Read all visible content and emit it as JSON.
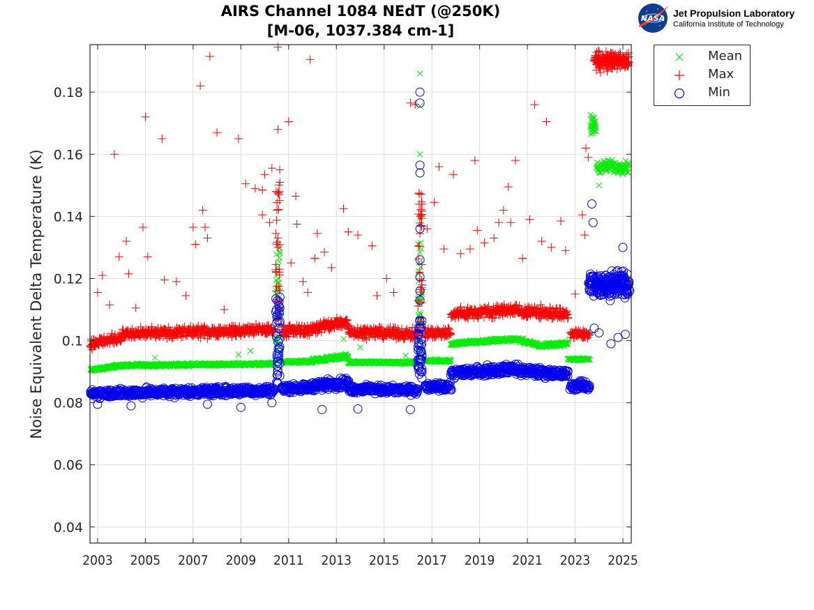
{
  "header": {
    "title_line1": "AIRS Channel 1084 NEdT (@250K)",
    "title_line2": "[M-06, 1037.384 cm-1]"
  },
  "logo": {
    "emblem": "NASA",
    "name": "Jet Propulsion Laboratory",
    "subtitle": "California Institute of Technology"
  },
  "chart_data": {
    "type": "scatter",
    "title": "AIRS Channel 1084 NEdT (@250K) [M-06, 1037.384 cm-1]",
    "xlabel": "",
    "ylabel": "Noise Equivalent Delta Temperature (K)",
    "xlim": [
      2002.68,
      2025.35
    ],
    "ylim": [
      0.0348,
      0.1953
    ],
    "xticks": [
      2003,
      2005,
      2007,
      2009,
      2011,
      2013,
      2015,
      2017,
      2019,
      2021,
      2023,
      2025
    ],
    "xtick_labels": [
      "2003",
      "2005",
      "2007",
      "2009",
      "2011",
      "2013",
      "2015",
      "2017",
      "2019",
      "2021",
      "2023",
      "2025"
    ],
    "yticks": [
      0.04,
      0.06,
      0.08,
      0.1,
      0.12,
      0.14,
      0.16,
      0.18
    ],
    "ytick_labels": [
      "0.04",
      "0.06",
      "0.08",
      "0.1",
      "0.12",
      "0.14",
      "0.16",
      "0.18"
    ],
    "grid": true,
    "legend_position": "outside-top-right",
    "colors": {
      "Mean": "#00ee00",
      "Max": "#ff0000",
      "Min": "#0000ee"
    },
    "series": [
      {
        "name": "Mean",
        "marker": "x",
        "segments": [
          {
            "x": [
              2002.7,
              2004.0
            ],
            "y": [
              0.0905,
              0.092
            ],
            "spread": 0.0008
          },
          {
            "x": [
              2004.0,
              2010.4
            ],
            "y": [
              0.092,
              0.0925
            ],
            "spread": 0.0007
          },
          {
            "x": [
              2010.7,
              2012.0
            ],
            "y": [
              0.093,
              0.0932
            ],
            "spread": 0.0007
          },
          {
            "x": [
              2012.0,
              2013.5
            ],
            "y": [
              0.0935,
              0.095
            ],
            "spread": 0.0012
          },
          {
            "x": [
              2013.5,
              2016.4
            ],
            "y": [
              0.093,
              0.093
            ],
            "spread": 0.0006
          },
          {
            "x": [
              2016.7,
              2017.8
            ],
            "y": [
              0.0935,
              0.0935
            ],
            "spread": 0.0006
          },
          {
            "x": [
              2017.8,
              2020.5
            ],
            "y": [
              0.099,
              0.1005
            ],
            "spread": 0.001
          },
          {
            "x": [
              2020.5,
              2021.5
            ],
            "y": [
              0.1005,
              0.0985
            ],
            "spread": 0.001
          },
          {
            "x": [
              2021.5,
              2022.7
            ],
            "y": [
              0.0985,
              0.099
            ],
            "spread": 0.001
          },
          {
            "x": [
              2022.7,
              2023.6
            ],
            "y": [
              0.094,
              0.094
            ],
            "spread": 0.0005
          },
          {
            "x": [
              2023.65,
              2023.85
            ],
            "y": [
              0.169,
              0.169
            ],
            "spread": 0.0045
          },
          {
            "x": [
              2023.9,
              2025.25
            ],
            "y": [
              0.156,
              0.156
            ],
            "spread": 0.003
          }
        ],
        "spikes": [
          {
            "x": 2010.55,
            "y": [
              0.093,
              0.131
            ]
          },
          {
            "x": 2016.5,
            "y": [
              0.094,
              0.132
            ]
          }
        ],
        "outliers": [
          [
            2005.4,
            0.0945
          ],
          [
            2008.9,
            0.0955
          ],
          [
            2009.4,
            0.0967
          ],
          [
            2013.3,
            0.1005
          ],
          [
            2014.0,
            0.0978
          ],
          [
            2015.9,
            0.0952
          ],
          [
            2016.5,
            0.186
          ],
          [
            2016.5,
            0.1755
          ],
          [
            2016.5,
            0.16
          ],
          [
            2016.5,
            0.1395
          ],
          [
            2024.0,
            0.15
          ]
        ]
      },
      {
        "name": "Max",
        "marker": "+",
        "segments": [
          {
            "x": [
              2002.7,
              2004.0
            ],
            "y": [
              0.099,
              0.101
            ],
            "spread": 0.0025
          },
          {
            "x": [
              2004.0,
              2010.4
            ],
            "y": [
              0.102,
              0.1035
            ],
            "spread": 0.0025
          },
          {
            "x": [
              2010.7,
              2012.0
            ],
            "y": [
              0.103,
              0.1035
            ],
            "spread": 0.0025
          },
          {
            "x": [
              2012.0,
              2013.5
            ],
            "y": [
              0.104,
              0.106
            ],
            "spread": 0.003
          },
          {
            "x": [
              2013.5,
              2016.4
            ],
            "y": [
              0.103,
              0.102
            ],
            "spread": 0.0025
          },
          {
            "x": [
              2016.7,
              2017.8
            ],
            "y": [
              0.1025,
              0.1025
            ],
            "spread": 0.0025
          },
          {
            "x": [
              2017.8,
              2020.5
            ],
            "y": [
              0.1085,
              0.11
            ],
            "spread": 0.0028
          },
          {
            "x": [
              2020.5,
              2022.7
            ],
            "y": [
              0.1095,
              0.1085
            ],
            "spread": 0.0028
          },
          {
            "x": [
              2022.8,
              2023.6
            ],
            "y": [
              0.102,
              0.102
            ],
            "spread": 0.0022
          },
          {
            "x": [
              2023.8,
              2025.25
            ],
            "y": [
              0.19,
              0.19
            ],
            "spread": 0.004
          }
        ],
        "spikes": [
          {
            "x": 2010.55,
            "y": [
              0.105,
              0.155
            ]
          },
          {
            "x": 2016.5,
            "y": [
              0.104,
              0.148
            ]
          }
        ],
        "outliers": [
          [
            2003.0,
            0.1155
          ],
          [
            2003.2,
            0.121
          ],
          [
            2003.5,
            0.1115
          ],
          [
            2003.7,
            0.16
          ],
          [
            2003.9,
            0.127
          ],
          [
            2004.2,
            0.132
          ],
          [
            2004.3,
            0.1215
          ],
          [
            2004.6,
            0.1105
          ],
          [
            2004.9,
            0.1365
          ],
          [
            2005.0,
            0.172
          ],
          [
            2005.1,
            0.127
          ],
          [
            2005.7,
            0.165
          ],
          [
            2005.8,
            0.1195
          ],
          [
            2006.3,
            0.119
          ],
          [
            2006.7,
            0.1145
          ],
          [
            2007.0,
            0.1365
          ],
          [
            2007.3,
            0.182
          ],
          [
            2007.1,
            0.131
          ],
          [
            2007.4,
            0.142
          ],
          [
            2007.5,
            0.1365
          ],
          [
            2007.6,
            0.133
          ],
          [
            2007.7,
            0.1915
          ],
          [
            2008.0,
            0.167
          ],
          [
            2008.3,
            0.11
          ],
          [
            2008.9,
            0.165
          ],
          [
            2009.2,
            0.1505
          ],
          [
            2009.6,
            0.149
          ],
          [
            2009.9,
            0.1485
          ],
          [
            2009.9,
            0.1405
          ],
          [
            2010.2,
            0.138
          ],
          [
            2010.0,
            0.1535
          ],
          [
            2010.3,
            0.1555
          ],
          [
            2010.55,
            0.1945
          ],
          [
            2010.55,
            0.168
          ],
          [
            2011.0,
            0.1705
          ],
          [
            2011.1,
            0.125
          ],
          [
            2011.3,
            0.1465
          ],
          [
            2011.35,
            0.1375
          ],
          [
            2011.6,
            0.119
          ],
          [
            2011.8,
            0.1155
          ],
          [
            2011.9,
            0.1905
          ],
          [
            2012.1,
            0.1265
          ],
          [
            2012.2,
            0.1345
          ],
          [
            2012.5,
            0.1285
          ],
          [
            2012.8,
            0.1235
          ],
          [
            2013.3,
            0.1425
          ],
          [
            2013.5,
            0.135
          ],
          [
            2013.9,
            0.134
          ],
          [
            2014.5,
            0.1305
          ],
          [
            2014.7,
            0.1145
          ],
          [
            2015.1,
            0.12
          ],
          [
            2015.4,
            0.1155
          ],
          [
            2016.1,
            0.1765
          ],
          [
            2016.3,
            0.176
          ],
          [
            2016.8,
            0.136
          ],
          [
            2017.1,
            0.1445
          ],
          [
            2017.3,
            0.156
          ],
          [
            2017.5,
            0.1295
          ],
          [
            2017.9,
            0.1535
          ],
          [
            2018.2,
            0.128
          ],
          [
            2018.6,
            0.1295
          ],
          [
            2018.8,
            0.158
          ],
          [
            2018.9,
            0.1355
          ],
          [
            2019.2,
            0.1315
          ],
          [
            2019.6,
            0.133
          ],
          [
            2019.8,
            0.138
          ],
          [
            2020.0,
            0.142
          ],
          [
            2020.2,
            0.1495
          ],
          [
            2020.3,
            0.138
          ],
          [
            2020.5,
            0.158
          ],
          [
            2020.8,
            0.1265
          ],
          [
            2021.1,
            0.139
          ],
          [
            2021.3,
            0.176
          ],
          [
            2021.6,
            0.132
          ],
          [
            2021.8,
            0.1705
          ],
          [
            2022.0,
            0.13
          ],
          [
            2022.4,
            0.1385
          ],
          [
            2022.6,
            0.129
          ],
          [
            2023.0,
            0.115
          ],
          [
            2023.3,
            0.1405
          ],
          [
            2023.4,
            0.134
          ],
          [
            2023.45,
            0.162
          ],
          [
            2023.55,
            0.159
          ],
          [
            2023.9,
            0.1215
          ],
          [
            2023.7,
            0.119
          ]
        ]
      },
      {
        "name": "Min",
        "marker": "o",
        "segments": [
          {
            "x": [
              2002.7,
              2010.4
            ],
            "y": [
              0.083,
              0.084
            ],
            "spread": 0.002
          },
          {
            "x": [
              2010.7,
              2012.0
            ],
            "y": [
              0.0845,
              0.085
            ],
            "spread": 0.0018
          },
          {
            "x": [
              2012.0,
              2013.5
            ],
            "y": [
              0.0855,
              0.0865
            ],
            "spread": 0.0022
          },
          {
            "x": [
              2013.5,
              2016.4
            ],
            "y": [
              0.0845,
              0.084
            ],
            "spread": 0.0018
          },
          {
            "x": [
              2016.7,
              2017.8
            ],
            "y": [
              0.085,
              0.085
            ],
            "spread": 0.0018
          },
          {
            "x": [
              2017.8,
              2020.5
            ],
            "y": [
              0.0895,
              0.091
            ],
            "spread": 0.0022
          },
          {
            "x": [
              2020.5,
              2022.7
            ],
            "y": [
              0.0905,
              0.089
            ],
            "spread": 0.0022
          },
          {
            "x": [
              2022.8,
              2023.6
            ],
            "y": [
              0.0855,
              0.0855
            ],
            "spread": 0.002
          },
          {
            "x": [
              2023.6,
              2025.25
            ],
            "y": [
              0.118,
              0.118
            ],
            "spread": 0.0055
          }
        ],
        "spikes": [
          {
            "x": 2010.55,
            "y": [
              0.086,
              0.114
            ]
          },
          {
            "x": 2016.5,
            "y": [
              0.087,
              0.107
            ]
          }
        ],
        "outliers": [
          [
            2003.0,
            0.0795
          ],
          [
            2004.4,
            0.079
          ],
          [
            2007.6,
            0.0795
          ],
          [
            2009.0,
            0.0785
          ],
          [
            2010.3,
            0.08
          ],
          [
            2012.4,
            0.0778
          ],
          [
            2013.9,
            0.078
          ],
          [
            2016.1,
            0.0778
          ],
          [
            2016.5,
            0.18
          ],
          [
            2016.5,
            0.1765
          ],
          [
            2016.5,
            0.1565
          ],
          [
            2016.5,
            0.154
          ],
          [
            2016.5,
            0.136
          ],
          [
            2016.5,
            0.126
          ],
          [
            2016.5,
            0.1205
          ],
          [
            2016.5,
            0.116
          ],
          [
            2016.5,
            0.113
          ],
          [
            2023.7,
            0.144
          ],
          [
            2023.75,
            0.138
          ],
          [
            2023.8,
            0.104
          ],
          [
            2024.0,
            0.1025
          ],
          [
            2024.5,
            0.099
          ],
          [
            2024.8,
            0.101
          ],
          [
            2025.0,
            0.13
          ],
          [
            2025.1,
            0.102
          ]
        ]
      }
    ]
  },
  "legend": {
    "items": [
      {
        "label": "Mean",
        "marker": "x"
      },
      {
        "label": "Max",
        "marker": "+"
      },
      {
        "label": "Min",
        "marker": "o"
      }
    ]
  }
}
